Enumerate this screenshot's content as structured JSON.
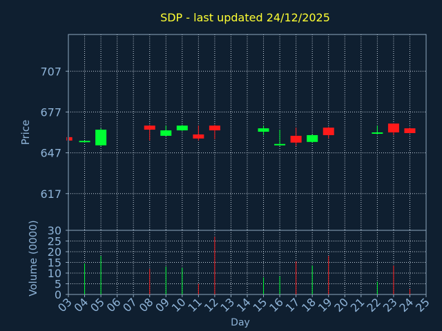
{
  "title": "SDP - last updated 24/12/2025",
  "colors": {
    "background": "#0f1f30",
    "frame": "#8fa8bf",
    "grid": "#c8d4e0",
    "title": "#ffff33",
    "axis_text": "#8fb4d8",
    "up": "#00ff33",
    "down": "#ff1a1a"
  },
  "chart_data": [
    {
      "type": "candlestick",
      "ylabel": "Price",
      "ylim": [
        590,
        734
      ],
      "yticks": [
        617,
        647,
        677,
        707
      ],
      "grid": true,
      "candles": [
        {
          "day": 2.9,
          "open": 658.5,
          "close": 656.0,
          "high": 658.5,
          "low": 656.0
        },
        {
          "day": 4.0,
          "open": 655.0,
          "close": 655.8,
          "high": 656.0,
          "low": 654.5
        },
        {
          "day": 5.0,
          "open": 652.5,
          "close": 664.0,
          "high": 665.0,
          "low": 652.0
        },
        {
          "day": 8.0,
          "open": 667.0,
          "close": 664.0,
          "high": 667.5,
          "low": 656.0
        },
        {
          "day": 9.0,
          "open": 659.5,
          "close": 663.5,
          "high": 667.0,
          "low": 659.5
        },
        {
          "day": 10.0,
          "open": 663.5,
          "close": 667.0,
          "high": 667.5,
          "low": 663.0
        },
        {
          "day": 11.0,
          "open": 660.5,
          "close": 657.5,
          "high": 667.0,
          "low": 656.0
        },
        {
          "day": 12.0,
          "open": 667.0,
          "close": 663.5,
          "high": 667.5,
          "low": 657.0
        },
        {
          "day": 15.0,
          "open": 662.5,
          "close": 665.0,
          "high": 667.0,
          "low": 660.0
        },
        {
          "day": 16.0,
          "open": 652.5,
          "close": 653.5,
          "high": 664.0,
          "low": 652.0
        },
        {
          "day": 17.0,
          "open": 659.5,
          "close": 654.5,
          "high": 665.5,
          "low": 652.0
        },
        {
          "day": 18.0,
          "open": 655.0,
          "close": 660.0,
          "high": 660.5,
          "low": 654.5
        },
        {
          "day": 19.0,
          "open": 665.5,
          "close": 660.0,
          "high": 666.0,
          "low": 657.5
        },
        {
          "day": 22.0,
          "open": 661.0,
          "close": 662.0,
          "high": 667.0,
          "low": 660.5
        },
        {
          "day": 23.0,
          "open": 668.5,
          "close": 662.0,
          "high": 668.5,
          "low": 660.0
        },
        {
          "day": 24.0,
          "open": 665.0,
          "close": 661.5,
          "high": 665.5,
          "low": 661.5
        }
      ]
    },
    {
      "type": "bar",
      "ylabel": "Volume (0000)",
      "xlabel": "Day",
      "ylim": [
        0,
        30
      ],
      "yticks": [
        0,
        5,
        10,
        15,
        20,
        25,
        30
      ],
      "xlim": [
        3,
        25
      ],
      "xticks": [
        "03",
        "04",
        "05",
        "06",
        "07",
        "08",
        "09",
        "10",
        "11",
        "12",
        "13",
        "14",
        "15",
        "16",
        "17",
        "18",
        "19",
        "20",
        "21",
        "22",
        "23",
        "24",
        "25"
      ],
      "grid": true,
      "bars": [
        {
          "day": 4.0,
          "value": 14.5,
          "dir": "up"
        },
        {
          "day": 5.0,
          "value": 18.0,
          "dir": "up"
        },
        {
          "day": 8.0,
          "value": 12.0,
          "dir": "down"
        },
        {
          "day": 9.0,
          "value": 13.0,
          "dir": "up"
        },
        {
          "day": 10.0,
          "value": 12.5,
          "dir": "up"
        },
        {
          "day": 11.0,
          "value": 5.0,
          "dir": "down"
        },
        {
          "day": 12.0,
          "value": 27.0,
          "dir": "down"
        },
        {
          "day": 15.0,
          "value": 8.0,
          "dir": "up"
        },
        {
          "day": 16.0,
          "value": 8.5,
          "dir": "up"
        },
        {
          "day": 17.0,
          "value": 15.5,
          "dir": "down"
        },
        {
          "day": 18.0,
          "value": 13.5,
          "dir": "up"
        },
        {
          "day": 19.0,
          "value": 18.0,
          "dir": "down"
        },
        {
          "day": 22.0,
          "value": 6.0,
          "dir": "up"
        },
        {
          "day": 23.0,
          "value": 13.5,
          "dir": "down"
        },
        {
          "day": 24.0,
          "value": 2.5,
          "dir": "down"
        }
      ]
    }
  ]
}
